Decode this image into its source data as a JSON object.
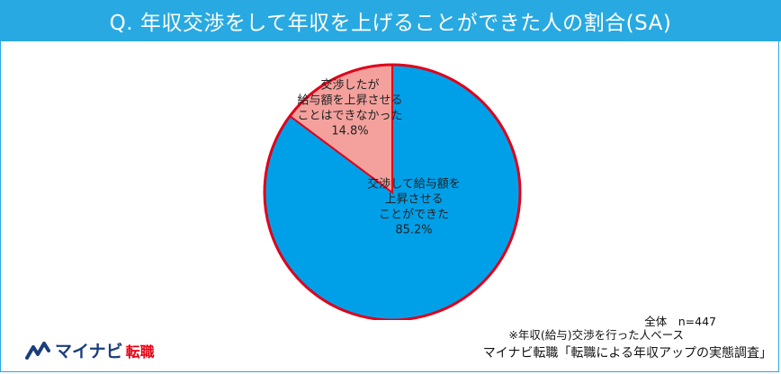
{
  "header": {
    "title": "Q. 年収交渉をして年収を上げることができた人の割合(SA)"
  },
  "chart_data": {
    "type": "pie",
    "title": "Q. 年収交渉をして年収を上げることができた人の割合(SA)",
    "slices": [
      {
        "label_lines": [
          "交渉して給与額を",
          "上昇させる",
          "ことができた"
        ],
        "value": 85.2,
        "value_label": "85.2%",
        "color": "#00a0e9"
      },
      {
        "label_lines": [
          "交渉したが",
          "給与額を上昇させる",
          "ことはできなかった"
        ],
        "value": 14.8,
        "value_label": "14.8%",
        "color": "#f4a19d"
      }
    ],
    "border_color": "#e0001a"
  },
  "notes": {
    "total": "全体　n=447",
    "basis": "※年収(給与)交渉を行った人ベース"
  },
  "footer": {
    "source": "マイナビ転職「転職による年収アップの実態調査」",
    "logo_text": "マイナビ",
    "logo_sub": "転職"
  }
}
